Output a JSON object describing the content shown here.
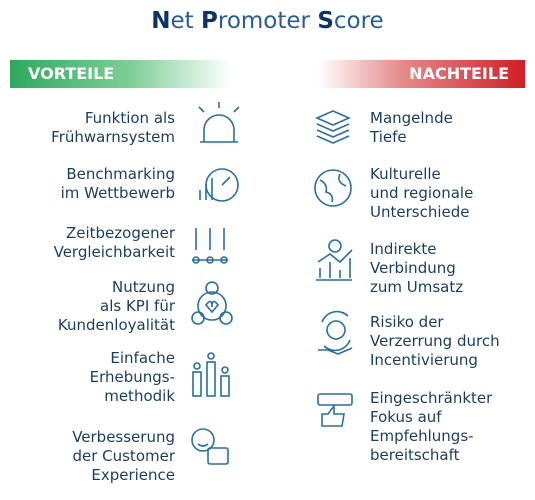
{
  "title": "Net Promoter Score",
  "pros": {
    "heading": "VORTEILE",
    "items": [
      [
        "Funktion als",
        "Frühwarnsystem"
      ],
      [
        "Benchmarking",
        "im Wettbewerb"
      ],
      [
        "Zeitbezogener",
        "Vergleichbarkeit"
      ],
      [
        "Nutzung",
        "als KPI für",
        "Kundenloyalität"
      ],
      [
        "Einfache",
        "Erhebungs-",
        "methodik"
      ],
      [
        "Verbesserung",
        "der Customer",
        "Experience"
      ]
    ]
  },
  "cons": {
    "heading": "NACHTEILE",
    "items": [
      [
        "Mangelnde",
        "Tiefe"
      ],
      [
        "Kulturelle",
        "und regionale",
        "Unterschiede"
      ],
      [
        "Indirekte",
        "Verbindung",
        "zum Umsatz"
      ],
      [
        "Risiko der",
        "Verzerrung durch",
        "Incentivierung"
      ],
      [
        "Eingeschränkter",
        "Fokus auf",
        "Empfehlungs-",
        "bereitschaft"
      ]
    ]
  }
}
